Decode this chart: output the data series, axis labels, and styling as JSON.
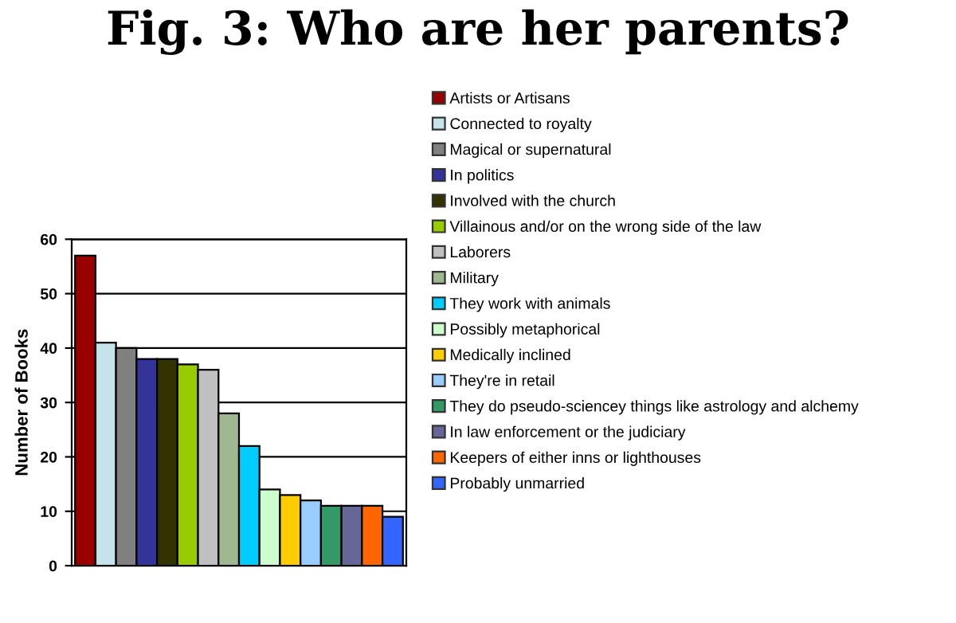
{
  "chart_data": {
    "type": "bar",
    "title": "Fig. 3: Who are her parents?",
    "ylabel": "Number of Books",
    "categories": [
      null
    ],
    "series": [
      {
        "name": "Artists or Artisans",
        "color": "#990000",
        "values": [
          57
        ]
      },
      {
        "name": "Connected to royalty",
        "color": "#c5e3ea",
        "values": [
          41
        ]
      },
      {
        "name": "Magical or supernatural",
        "color": "#808080",
        "values": [
          40
        ]
      },
      {
        "name": "In politics",
        "color": "#333399",
        "values": [
          38
        ]
      },
      {
        "name": "Involved with the church",
        "color": "#333300",
        "values": [
          38
        ]
      },
      {
        "name": "Villainous and/or on the wrong side of the law",
        "color": "#99cc00",
        "values": [
          37
        ]
      },
      {
        "name": "Laborers",
        "color": "#c0c0c0",
        "values": [
          36
        ]
      },
      {
        "name": "Military",
        "color": "#a0b890",
        "values": [
          28
        ]
      },
      {
        "name": "They work with animals",
        "color": "#00ccff",
        "values": [
          22
        ]
      },
      {
        "name": "Possibly metaphorical",
        "color": "#ccffcc",
        "values": [
          14
        ]
      },
      {
        "name": "Medically inclined",
        "color": "#ffcc00",
        "values": [
          13
        ]
      },
      {
        "name": "They're in retail",
        "color": "#99ccff",
        "values": [
          12
        ]
      },
      {
        "name": "They do pseudo-sciencey things like astrology and alchemy",
        "color": "#339966",
        "values": [
          11
        ]
      },
      {
        "name": "In law enforcement or the judiciary",
        "color": "#666699",
        "values": [
          11
        ]
      },
      {
        "name": "Keepers of either inns or lighthouses",
        "color": "#ff6600",
        "values": [
          11
        ]
      },
      {
        "name": "Probably unmarried",
        "color": "#3366ff",
        "values": [
          9
        ]
      }
    ],
    "ylim": [
      0,
      60
    ],
    "yticks": [
      0,
      10,
      20,
      30,
      40,
      50,
      60
    ],
    "grid": "y",
    "legend": "right",
    "tick_labels": "y"
  }
}
